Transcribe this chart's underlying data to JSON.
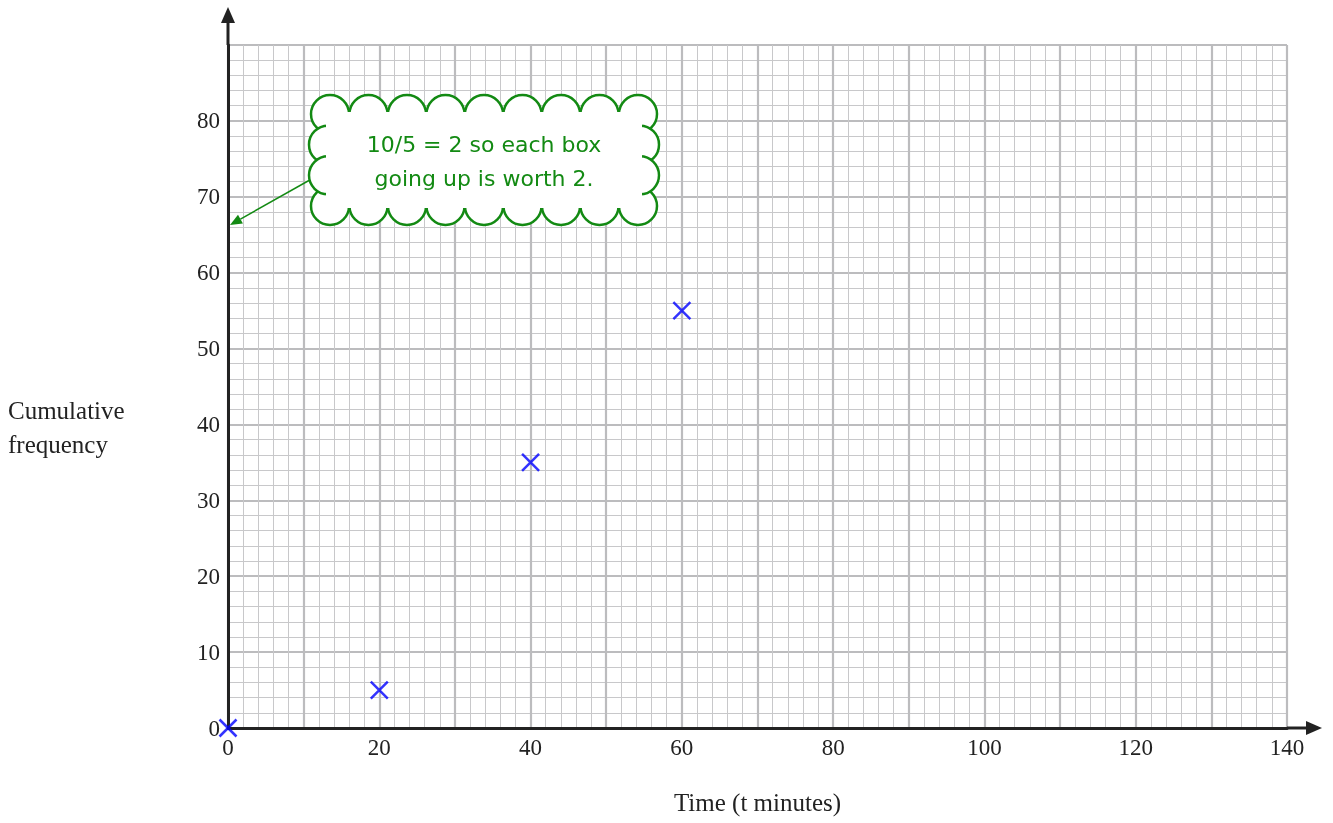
{
  "chart_data": {
    "type": "scatter",
    "xlabel": "Time (t minutes)",
    "ylabel": "Cumulative frequency",
    "x": [
      0,
      20,
      40,
      60
    ],
    "values": [
      0,
      5,
      35,
      55
    ],
    "color": "#0000ff",
    "marker": "cross",
    "xlim": [
      0,
      140
    ],
    "xticks": [
      0,
      20,
      40,
      60,
      80,
      100,
      120,
      140
    ],
    "ylim": [
      0,
      90
    ],
    "yticks": [
      0,
      10,
      20,
      30,
      40,
      50,
      60,
      70,
      80
    ],
    "grid": true,
    "annotations": [
      "10/5 = 2 so each box going up is worth 2."
    ]
  }
}
